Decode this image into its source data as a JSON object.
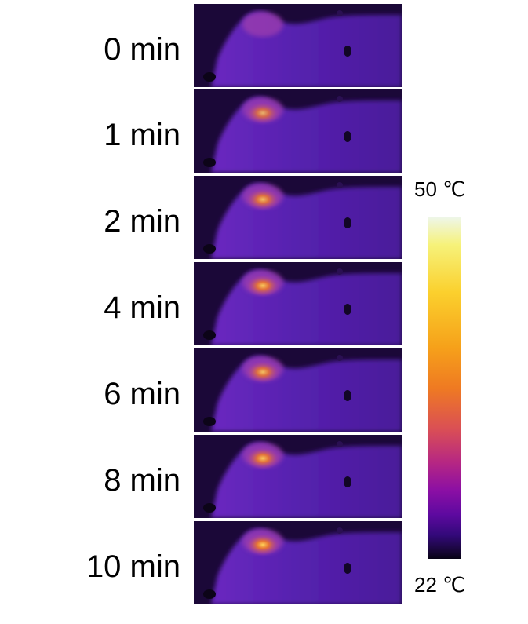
{
  "frames": [
    {
      "label": "0 min",
      "hot_intensity": 0.0
    },
    {
      "label": "1 min",
      "hot_intensity": 0.8
    },
    {
      "label": "2 min",
      "hot_intensity": 0.9
    },
    {
      "label": "4 min",
      "hot_intensity": 0.95
    },
    {
      "label": "6 min",
      "hot_intensity": 0.9
    },
    {
      "label": "8 min",
      "hot_intensity": 0.95
    },
    {
      "label": "10 min",
      "hot_intensity": 1.0
    }
  ],
  "colorbar": {
    "max_label": "50 ℃",
    "min_label": "22 ℃"
  },
  "colors": {
    "background_cold": "#1b0838",
    "body": "#5a1fb0",
    "hot_core": "#ffd25a",
    "hot_mid": "#f07a26"
  }
}
